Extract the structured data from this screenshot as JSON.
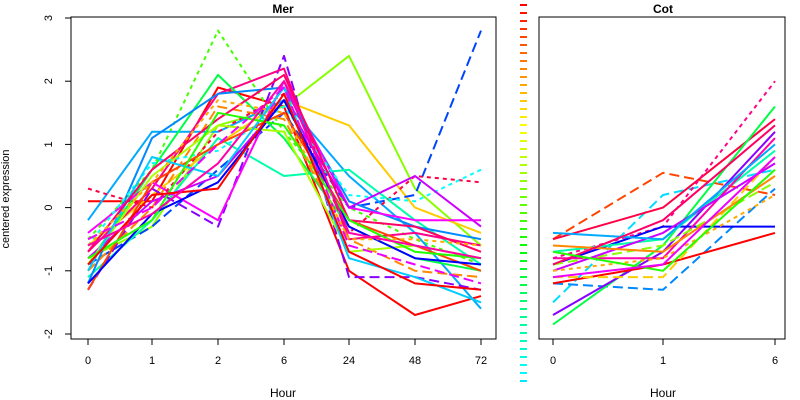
{
  "figure": {
    "ylabel": "centered expression"
  },
  "chart_data": [
    {
      "type": "line",
      "title": "Mer",
      "xlabel": "Hour",
      "ylabel": "centered expression",
      "categories": [
        "0",
        "1",
        "2",
        "6",
        "24",
        "48",
        "72"
      ],
      "yticks": [
        -2,
        -1,
        0,
        1,
        2,
        3
      ],
      "ylim": [
        -2,
        3
      ],
      "grid": false,
      "series": [
        {
          "color": "#ff0000",
          "dash": "",
          "values": [
            0.1,
            0.1,
            1.9,
            1.6,
            -1.0,
            -1.7,
            -1.4
          ]
        },
        {
          "color": "#88ff00",
          "dash": "",
          "values": [
            -0.8,
            -0.3,
            1.3,
            1.6,
            2.4,
            0.3,
            -0.6
          ]
        },
        {
          "color": "#ffcc00",
          "dash": "",
          "values": [
            -0.6,
            0.2,
            1.0,
            1.7,
            1.3,
            0.0,
            -0.4
          ]
        },
        {
          "color": "#0044ff",
          "dash": "10,5",
          "values": [
            -0.9,
            -0.3,
            0.6,
            1.5,
            0.0,
            0.2,
            2.8
          ]
        },
        {
          "color": "#44ff00",
          "dash": "4,4",
          "values": [
            -0.5,
            0.6,
            2.8,
            1.2,
            0.0,
            -0.5,
            -0.9
          ]
        },
        {
          "color": "#00aaff",
          "dash": "",
          "values": [
            -0.2,
            1.2,
            1.2,
            1.7,
            0.5,
            -0.4,
            -1.6
          ]
        },
        {
          "color": "#00ffaa",
          "dash": "",
          "values": [
            -1.1,
            -0.2,
            1.1,
            0.5,
            0.6,
            -0.2,
            -0.9
          ]
        },
        {
          "color": "#8800ff",
          "dash": "10,5",
          "values": [
            -1.3,
            0.3,
            -0.3,
            2.4,
            -1.1,
            -1.1,
            -1.3
          ]
        },
        {
          "color": "#ff0088",
          "dash": "",
          "values": [
            -0.7,
            0.3,
            1.8,
            2.2,
            -0.5,
            -0.4,
            -0.6
          ]
        },
        {
          "color": "#00ff44",
          "dash": "",
          "values": [
            -0.9,
            0.6,
            2.1,
            1.1,
            -0.3,
            -0.8,
            -1.0
          ]
        },
        {
          "color": "#ff8800",
          "dash": "10,5",
          "values": [
            -1.0,
            0.0,
            1.6,
            1.4,
            -0.5,
            -1.0,
            -1.1
          ]
        },
        {
          "color": "#0088ff",
          "dash": "",
          "values": [
            -1.2,
            1.1,
            1.8,
            1.9,
            0.1,
            -0.3,
            -0.5
          ]
        },
        {
          "color": "#ff00ff",
          "dash": "",
          "values": [
            -0.4,
            0.4,
            -0.2,
            2.0,
            0.0,
            -0.2,
            -0.2
          ]
        },
        {
          "color": "#ff0044",
          "dash": "4,4",
          "values": [
            0.3,
            0.0,
            1.2,
            1.8,
            -0.4,
            0.5,
            0.4
          ]
        },
        {
          "color": "#00ffff",
          "dash": "4,4",
          "values": [
            -0.6,
            0.7,
            0.9,
            1.6,
            0.2,
            0.1,
            0.6
          ]
        },
        {
          "color": "#cc00ff",
          "dash": "",
          "values": [
            -0.8,
            0.1,
            0.5,
            1.7,
            0.0,
            0.5,
            -0.3
          ]
        },
        {
          "color": "#ff4400",
          "dash": "",
          "values": [
            -1.3,
            0.4,
            1.0,
            1.5,
            -0.2,
            -0.6,
            -1.0
          ]
        },
        {
          "color": "#aaff00",
          "dash": "",
          "values": [
            -0.9,
            0.5,
            1.3,
            1.2,
            -0.7,
            -0.6,
            -0.8
          ]
        },
        {
          "color": "#00ccff",
          "dash": "",
          "values": [
            -1.0,
            0.8,
            0.5,
            1.9,
            -0.8,
            -1.1,
            -1.5
          ]
        },
        {
          "color": "#ff0066",
          "dash": "",
          "values": [
            -0.7,
            0.6,
            1.4,
            2.1,
            -0.2,
            -0.3,
            -0.7
          ]
        },
        {
          "color": "#ee00ff",
          "dash": "10,5",
          "values": [
            -0.5,
            0.0,
            1.0,
            1.9,
            -0.6,
            -0.9,
            -1.2
          ]
        },
        {
          "color": "#0000ff",
          "dash": "",
          "values": [
            -1.2,
            -0.1,
            0.4,
            1.7,
            -0.3,
            -0.8,
            -0.9
          ]
        },
        {
          "color": "#22ff00",
          "dash": "",
          "values": [
            -0.8,
            -0.2,
            1.5,
            1.3,
            -0.2,
            -0.7,
            -0.8
          ]
        },
        {
          "color": "#ffaa00",
          "dash": "4,4",
          "values": [
            -0.6,
            0.4,
            1.7,
            1.5,
            -0.5,
            -0.5,
            -0.6
          ]
        },
        {
          "color": "#ff0000",
          "dash": "",
          "values": [
            -0.9,
            0.2,
            0.3,
            1.8,
            -0.7,
            -1.2,
            -1.3
          ]
        },
        {
          "color": "#ff00aa",
          "dash": "",
          "values": [
            -0.6,
            -0.1,
            0.7,
            2.0,
            -0.4,
            -0.6,
            -0.8
          ]
        }
      ]
    },
    {
      "type": "line",
      "title": "Cot",
      "xlabel": "Hour",
      "categories": [
        "0",
        "1",
        "6"
      ],
      "ylim": [
        -2,
        3
      ],
      "grid": false,
      "series": [
        {
          "color": "#ff4400",
          "dash": "10,5",
          "values": [
            -0.5,
            0.55,
            0.2
          ]
        },
        {
          "color": "#00ddff",
          "dash": "10,5",
          "values": [
            -1.5,
            0.2,
            0.6
          ]
        },
        {
          "color": "#0088ff",
          "dash": "10,5",
          "values": [
            -1.2,
            -1.3,
            0.3
          ]
        },
        {
          "color": "#ff0044",
          "dash": "",
          "values": [
            -0.5,
            0.0,
            1.4
          ]
        },
        {
          "color": "#00ff44",
          "dash": "",
          "values": [
            -1.85,
            -0.6,
            1.6
          ]
        },
        {
          "color": "#ff0088",
          "dash": "4,4",
          "values": [
            -0.8,
            -0.3,
            2.0
          ]
        },
        {
          "color": "#8800ff",
          "dash": "",
          "values": [
            -1.7,
            -0.7,
            1.2
          ]
        },
        {
          "color": "#ff0000",
          "dash": "",
          "values": [
            -1.2,
            -0.9,
            -0.4
          ]
        },
        {
          "color": "#0000ff",
          "dash": "",
          "values": [
            -0.9,
            -0.3,
            -0.3
          ]
        },
        {
          "color": "#ffcc00",
          "dash": "10,5",
          "values": [
            -1.1,
            -1.1,
            0.8
          ]
        },
        {
          "color": "#00ffaa",
          "dash": "",
          "values": [
            -0.7,
            -0.5,
            0.9
          ]
        },
        {
          "color": "#ff00aa",
          "dash": "",
          "values": [
            -0.8,
            -0.8,
            1.1
          ]
        },
        {
          "color": "#88ff00",
          "dash": "10,5",
          "values": [
            -0.9,
            -0.6,
            0.4
          ]
        },
        {
          "color": "#cc00ff",
          "dash": "",
          "values": [
            -1.0,
            -0.4,
            0.7
          ]
        },
        {
          "color": "#ff8800",
          "dash": "",
          "values": [
            -0.6,
            -0.7,
            0.5
          ]
        },
        {
          "color": "#00aaff",
          "dash": "",
          "values": [
            -0.4,
            -0.5,
            1.0
          ]
        },
        {
          "color": "#ff0066",
          "dash": "",
          "values": [
            -0.9,
            -0.2,
            1.3
          ]
        },
        {
          "color": "#ffaa00",
          "dash": "4,4",
          "values": [
            -1.0,
            -0.8,
            0.2
          ]
        },
        {
          "color": "#22ff00",
          "dash": "",
          "values": [
            -0.7,
            -1.0,
            0.6
          ]
        },
        {
          "color": "#ee00ff",
          "dash": "",
          "values": [
            -1.1,
            -0.9,
            0.8
          ]
        }
      ]
    }
  ]
}
